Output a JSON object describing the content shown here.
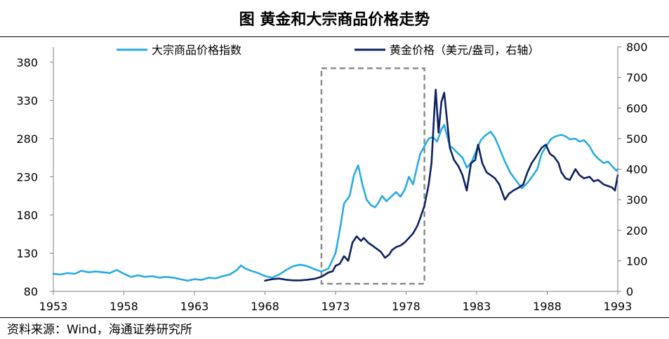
{
  "header": {
    "title": "图  黄金和大宗商品价格走势"
  },
  "footer": {
    "source": "资料来源：Wind，海通证券研究所"
  },
  "colors": {
    "commodity": "#29ABE2",
    "gold": "#0D2260",
    "box": "#8C8C8C",
    "axis": "#7F7F7F"
  },
  "chart_data": {
    "type": "line",
    "x_ticks": [
      "1953",
      "1958",
      "1963",
      "1968",
      "1973",
      "1978",
      "1983",
      "1988",
      "1993"
    ],
    "y_left": {
      "ticks": [
        "80",
        "130",
        "180",
        "230",
        "280",
        "330",
        "380"
      ],
      "range": [
        80,
        400
      ]
    },
    "y_right": {
      "ticks": [
        "0",
        "100",
        "200",
        "300",
        "400",
        "500",
        "600",
        "700",
        "800"
      ],
      "range": [
        0,
        800
      ]
    },
    "xlim": [
      1953,
      1993
    ],
    "highlight_box": {
      "x_range": [
        1972.0,
        1979.3
      ],
      "y_left_range": [
        90,
        372
      ],
      "style": "dashed"
    },
    "series": [
      {
        "name": "大宗商品价格指数",
        "axis": "left",
        "points": [
          [
            1953.0,
            103
          ],
          [
            1953.5,
            102
          ],
          [
            1954.0,
            104
          ],
          [
            1954.5,
            103
          ],
          [
            1955.0,
            107
          ],
          [
            1955.5,
            105
          ],
          [
            1956.0,
            106
          ],
          [
            1956.5,
            105
          ],
          [
            1957.0,
            104
          ],
          [
            1957.5,
            108
          ],
          [
            1958.0,
            103
          ],
          [
            1958.5,
            99
          ],
          [
            1959.0,
            101
          ],
          [
            1959.5,
            99
          ],
          [
            1960.0,
            100
          ],
          [
            1960.5,
            98
          ],
          [
            1961.0,
            99
          ],
          [
            1961.5,
            98
          ],
          [
            1962.0,
            96
          ],
          [
            1962.5,
            94
          ],
          [
            1963.0,
            96
          ],
          [
            1963.5,
            95
          ],
          [
            1964.0,
            98
          ],
          [
            1964.5,
            97
          ],
          [
            1965.0,
            100
          ],
          [
            1965.5,
            102
          ],
          [
            1966.0,
            108
          ],
          [
            1966.3,
            114
          ],
          [
            1966.6,
            110
          ],
          [
            1967.0,
            107
          ],
          [
            1967.5,
            104
          ],
          [
            1968.0,
            100
          ],
          [
            1968.5,
            98
          ],
          [
            1969.0,
            102
          ],
          [
            1969.5,
            108
          ],
          [
            1970.0,
            113
          ],
          [
            1970.5,
            115
          ],
          [
            1971.0,
            113
          ],
          [
            1971.5,
            109
          ],
          [
            1972.0,
            106
          ],
          [
            1972.5,
            110
          ],
          [
            1973.0,
            130
          ],
          [
            1973.3,
            160
          ],
          [
            1973.6,
            195
          ],
          [
            1974.0,
            205
          ],
          [
            1974.3,
            232
          ],
          [
            1974.6,
            245
          ],
          [
            1974.9,
            220
          ],
          [
            1975.2,
            200
          ],
          [
            1975.5,
            193
          ],
          [
            1975.8,
            190
          ],
          [
            1976.0,
            195
          ],
          [
            1976.3,
            205
          ],
          [
            1976.6,
            198
          ],
          [
            1977.0,
            205
          ],
          [
            1977.3,
            210
          ],
          [
            1977.6,
            204
          ],
          [
            1977.9,
            213
          ],
          [
            1978.2,
            230
          ],
          [
            1978.5,
            220
          ],
          [
            1978.8,
            245
          ],
          [
            1979.0,
            260
          ],
          [
            1979.3,
            270
          ],
          [
            1979.6,
            280
          ],
          [
            1979.9,
            282
          ],
          [
            1980.2,
            276
          ],
          [
            1980.5,
            292
          ],
          [
            1980.7,
            298
          ],
          [
            1980.9,
            284
          ],
          [
            1981.1,
            270
          ],
          [
            1981.3,
            268
          ],
          [
            1981.6,
            262
          ],
          [
            1982.0,
            255
          ],
          [
            1982.3,
            242
          ],
          [
            1982.6,
            248
          ],
          [
            1983.0,
            265
          ],
          [
            1983.3,
            278
          ],
          [
            1983.6,
            284
          ],
          [
            1984.0,
            289
          ],
          [
            1984.3,
            281
          ],
          [
            1984.6,
            268
          ],
          [
            1985.0,
            250
          ],
          [
            1985.4,
            235
          ],
          [
            1985.8,
            225
          ],
          [
            1986.2,
            215
          ],
          [
            1986.6,
            222
          ],
          [
            1987.0,
            232
          ],
          [
            1987.3,
            240
          ],
          [
            1987.6,
            260
          ],
          [
            1988.0,
            272
          ],
          [
            1988.3,
            280
          ],
          [
            1988.6,
            283
          ],
          [
            1989.0,
            285
          ],
          [
            1989.3,
            283
          ],
          [
            1989.6,
            279
          ],
          [
            1990.0,
            280
          ],
          [
            1990.3,
            276
          ],
          [
            1990.6,
            278
          ],
          [
            1991.0,
            270
          ],
          [
            1991.3,
            260
          ],
          [
            1991.6,
            254
          ],
          [
            1992.0,
            248
          ],
          [
            1992.3,
            250
          ],
          [
            1992.6,
            244
          ],
          [
            1992.9,
            238
          ],
          [
            1993.0,
            240
          ]
        ]
      },
      {
        "name": "黄金价格（美元/盎司，右轴）",
        "axis": "right",
        "points": [
          [
            1968.0,
            35
          ],
          [
            1968.5,
            40
          ],
          [
            1969.0,
            42
          ],
          [
            1969.5,
            38
          ],
          [
            1970.0,
            36
          ],
          [
            1970.5,
            36
          ],
          [
            1971.0,
            38
          ],
          [
            1971.5,
            41
          ],
          [
            1972.0,
            48
          ],
          [
            1972.5,
            62
          ],
          [
            1972.8,
            66
          ],
          [
            1973.0,
            84
          ],
          [
            1973.3,
            90
          ],
          [
            1973.6,
            115
          ],
          [
            1973.9,
            100
          ],
          [
            1974.2,
            160
          ],
          [
            1974.5,
            180
          ],
          [
            1974.8,
            165
          ],
          [
            1975.0,
            175
          ],
          [
            1975.3,
            160
          ],
          [
            1975.6,
            150
          ],
          [
            1975.9,
            140
          ],
          [
            1976.2,
            130
          ],
          [
            1976.5,
            110
          ],
          [
            1976.8,
            120
          ],
          [
            1977.0,
            135
          ],
          [
            1977.3,
            145
          ],
          [
            1977.6,
            150
          ],
          [
            1977.9,
            160
          ],
          [
            1978.2,
            175
          ],
          [
            1978.5,
            190
          ],
          [
            1978.8,
            215
          ],
          [
            1979.0,
            240
          ],
          [
            1979.3,
            280
          ],
          [
            1979.6,
            350
          ],
          [
            1979.8,
            420
          ],
          [
            1980.0,
            590
          ],
          [
            1980.1,
            660
          ],
          [
            1980.3,
            520
          ],
          [
            1980.5,
            620
          ],
          [
            1980.7,
            650
          ],
          [
            1980.9,
            560
          ],
          [
            1981.1,
            470
          ],
          [
            1981.4,
            430
          ],
          [
            1981.7,
            410
          ],
          [
            1982.0,
            380
          ],
          [
            1982.3,
            330
          ],
          [
            1982.6,
            420
          ],
          [
            1982.9,
            430
          ],
          [
            1983.1,
            480
          ],
          [
            1983.4,
            420
          ],
          [
            1983.7,
            390
          ],
          [
            1984.0,
            380
          ],
          [
            1984.3,
            370
          ],
          [
            1984.6,
            350
          ],
          [
            1985.0,
            300
          ],
          [
            1985.3,
            320
          ],
          [
            1985.6,
            330
          ],
          [
            1986.0,
            340
          ],
          [
            1986.3,
            350
          ],
          [
            1986.6,
            390
          ],
          [
            1986.9,
            420
          ],
          [
            1987.2,
            440
          ],
          [
            1987.6,
            470
          ],
          [
            1987.9,
            480
          ],
          [
            1988.2,
            450
          ],
          [
            1988.5,
            440
          ],
          [
            1988.8,
            420
          ],
          [
            1989.0,
            390
          ],
          [
            1989.3,
            370
          ],
          [
            1989.6,
            365
          ],
          [
            1990.0,
            400
          ],
          [
            1990.3,
            380
          ],
          [
            1990.6,
            370
          ],
          [
            1991.0,
            375
          ],
          [
            1991.3,
            360
          ],
          [
            1991.6,
            365
          ],
          [
            1992.0,
            350
          ],
          [
            1992.3,
            345
          ],
          [
            1992.6,
            340
          ],
          [
            1992.8,
            330
          ],
          [
            1993.0,
            380
          ]
        ]
      }
    ]
  }
}
